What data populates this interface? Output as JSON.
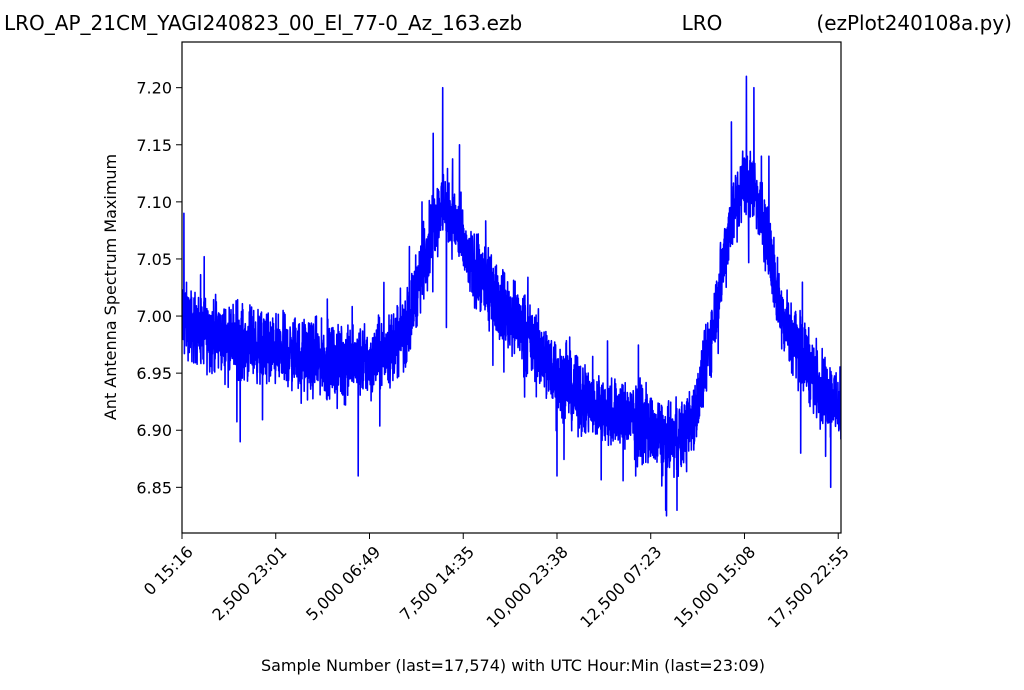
{
  "chart_data": {
    "type": "line",
    "title_left": "LRO_AP_21CM_YAGI240823_00_El_77-0_Az_163.ezb",
    "title_center": "LRO",
    "title_right": "(ezPlot240108a.py)",
    "xlabel": "Sample Number (last=17,574) with UTC Hour:Min (last=23:09)",
    "ylabel": "Ant Antenna Spectrum Maximum",
    "xlim": [
      0,
      17574
    ],
    "ylim": [
      6.81,
      7.24
    ],
    "x_ticks": [
      {
        "value": 0,
        "label": "0  15:16"
      },
      {
        "value": 2500,
        "label": "2,500  23:01"
      },
      {
        "value": 5000,
        "label": "5,000  06:49"
      },
      {
        "value": 7500,
        "label": "7,500  14:35"
      },
      {
        "value": 10000,
        "label": "10,000  23:38"
      },
      {
        "value": 12500,
        "label": "12,500  07:23"
      },
      {
        "value": 15000,
        "label": "15,000  15:08"
      },
      {
        "value": 17500,
        "label": "17,500  22:55"
      }
    ],
    "y_ticks": [
      {
        "value": 6.85,
        "label": "6.85"
      },
      {
        "value": 6.9,
        "label": "6.90"
      },
      {
        "value": 6.95,
        "label": "6.95"
      },
      {
        "value": 7.0,
        "label": "7.00"
      },
      {
        "value": 7.05,
        "label": "7.05"
      },
      {
        "value": 7.1,
        "label": "7.10"
      },
      {
        "value": 7.15,
        "label": "7.15"
      },
      {
        "value": 7.2,
        "label": "7.20"
      }
    ],
    "grid": false,
    "series": [
      {
        "color": "#0000ff",
        "noise_amplitude": 0.045,
        "envelope": [
          [
            0,
            7.0
          ],
          [
            300,
            6.99
          ],
          [
            1000,
            6.98
          ],
          [
            2500,
            6.97
          ],
          [
            4000,
            6.96
          ],
          [
            5000,
            6.96
          ],
          [
            5500,
            6.97
          ],
          [
            6000,
            6.99
          ],
          [
            6300,
            7.03
          ],
          [
            6700,
            7.08
          ],
          [
            7000,
            7.1
          ],
          [
            7300,
            7.08
          ],
          [
            7600,
            7.05
          ],
          [
            8000,
            7.03
          ],
          [
            8500,
            7.01
          ],
          [
            9000,
            6.99
          ],
          [
            9500,
            6.97
          ],
          [
            10000,
            6.95
          ],
          [
            10500,
            6.93
          ],
          [
            11000,
            6.92
          ],
          [
            12000,
            6.91
          ],
          [
            12500,
            6.9
          ],
          [
            13000,
            6.89
          ],
          [
            13500,
            6.9
          ],
          [
            13800,
            6.93
          ],
          [
            14200,
            7.0
          ],
          [
            14600,
            7.08
          ],
          [
            15000,
            7.12
          ],
          [
            15300,
            7.11
          ],
          [
            15700,
            7.05
          ],
          [
            16000,
            7.0
          ],
          [
            16500,
            6.97
          ],
          [
            17000,
            6.94
          ],
          [
            17574,
            6.92
          ]
        ],
        "spikes": [
          [
            50,
            7.09
          ],
          [
            1550,
            6.89
          ],
          [
            4700,
            6.86
          ],
          [
            6400,
            7.1
          ],
          [
            6700,
            7.16
          ],
          [
            6950,
            7.2
          ],
          [
            7050,
            6.99
          ],
          [
            7400,
            7.15
          ],
          [
            10000,
            6.86
          ],
          [
            12100,
            6.86
          ],
          [
            12900,
            6.83
          ],
          [
            13200,
            6.83
          ],
          [
            14650,
            7.17
          ],
          [
            15050,
            7.21
          ],
          [
            15250,
            7.2
          ],
          [
            15450,
            7.14
          ],
          [
            15650,
            7.14
          ],
          [
            16500,
            6.88
          ],
          [
            17300,
            6.85
          ]
        ]
      }
    ]
  }
}
